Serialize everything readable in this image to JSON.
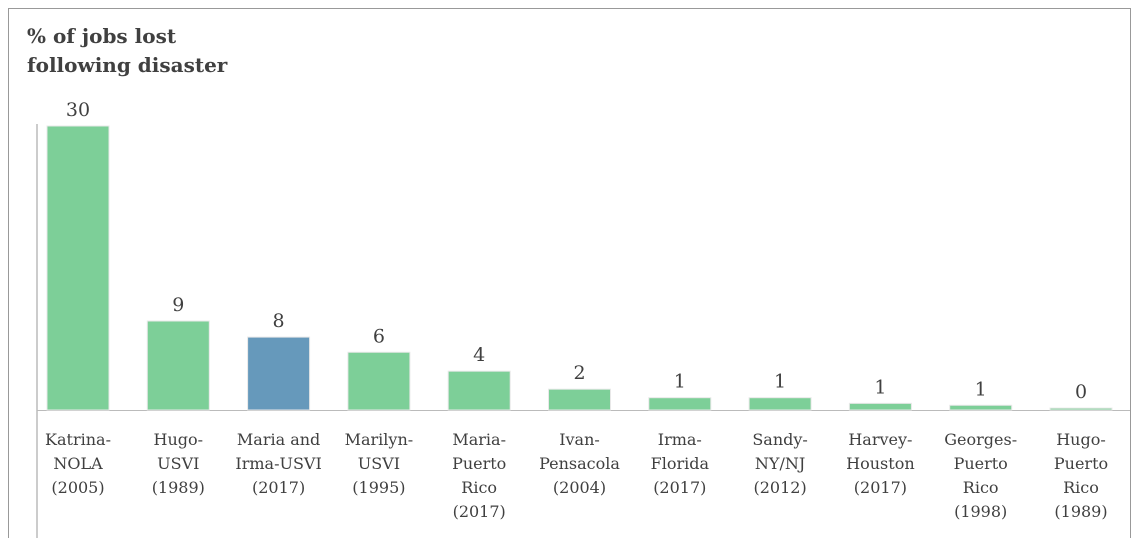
{
  "chart_data": {
    "type": "bar",
    "title": "% of jobs lost\nfollowing disaster",
    "categories": [
      "Katrina-\nNOLA\n(2005)",
      "Hugo-\nUSVI\n(1989)",
      "Maria and\nIrma-USVI\n(2017)",
      "Marilyn-\nUSVI\n(1995)",
      "Maria-\nPuerto\nRico\n(2017)",
      "Ivan-\nPensacola\n(2004)",
      "Irma-\nFlorida\n(2017)",
      "Sandy-\nNY/NJ\n(2012)",
      "Harvey-\nHouston\n(2017)",
      "Georges-\nPuerto\nRico\n(1998)",
      "Hugo-\nPuerto\nRico\n(1989)"
    ],
    "values": [
      30,
      9.4,
      7.7,
      6.1,
      4.1,
      2.2,
      1.3,
      1.3,
      0.7,
      0.5,
      0.2
    ],
    "value_labels": [
      "30",
      "9",
      "8",
      "6",
      "4",
      "2",
      "1",
      "1",
      "1",
      "1",
      "0"
    ],
    "colors": [
      "#7dcf98",
      "#7dcf98",
      "#6699bb",
      "#7dcf98",
      "#7dcf98",
      "#7dcf98",
      "#7dcf98",
      "#7dcf98",
      "#7dcf98",
      "#7dcf98",
      "#7dcf98"
    ],
    "ylim": [
      0,
      30
    ]
  }
}
